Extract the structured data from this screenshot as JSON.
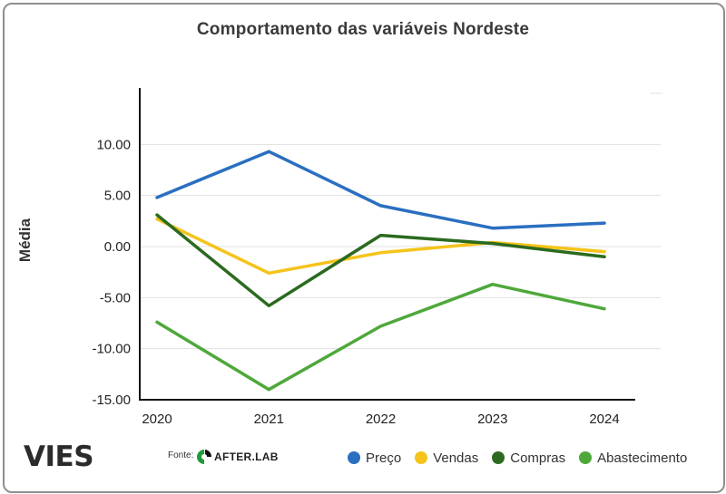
{
  "chart_data": {
    "type": "line",
    "title": "Comportamento das variáveis Nordeste",
    "xlabel": "",
    "ylabel": "Média",
    "categories": [
      "2020",
      "2021",
      "2022",
      "2023",
      "2024"
    ],
    "yticks": [
      10,
      5,
      0,
      -5,
      -10,
      -15
    ],
    "ytick_labels": [
      "10.00",
      "5.00",
      "0.00",
      "-5.00",
      "-10.00",
      "-15.00"
    ],
    "ylim": [
      -15,
      15
    ],
    "grid": true,
    "legend_position": "bottom-right",
    "series": [
      {
        "name": "Preço",
        "color": "#2a6fc0",
        "values": [
          4.8,
          9.3,
          4.0,
          1.8,
          2.3
        ]
      },
      {
        "name": "Vendas",
        "color": "#f5c31a",
        "values": [
          2.7,
          -2.6,
          -0.6,
          0.4,
          -0.5
        ]
      },
      {
        "name": "Compras",
        "color": "#2b6a1f",
        "values": [
          3.1,
          -5.8,
          1.1,
          0.3,
          -1.0
        ]
      },
      {
        "name": "Abastecimento",
        "color": "#4ea83a",
        "values": [
          -7.4,
          -14.0,
          -7.8,
          -3.7,
          -6.1
        ]
      }
    ]
  },
  "branding": {
    "logo_text": "VIES",
    "source_label": "Fonte:",
    "source_name": "AFTER.LAB"
  }
}
